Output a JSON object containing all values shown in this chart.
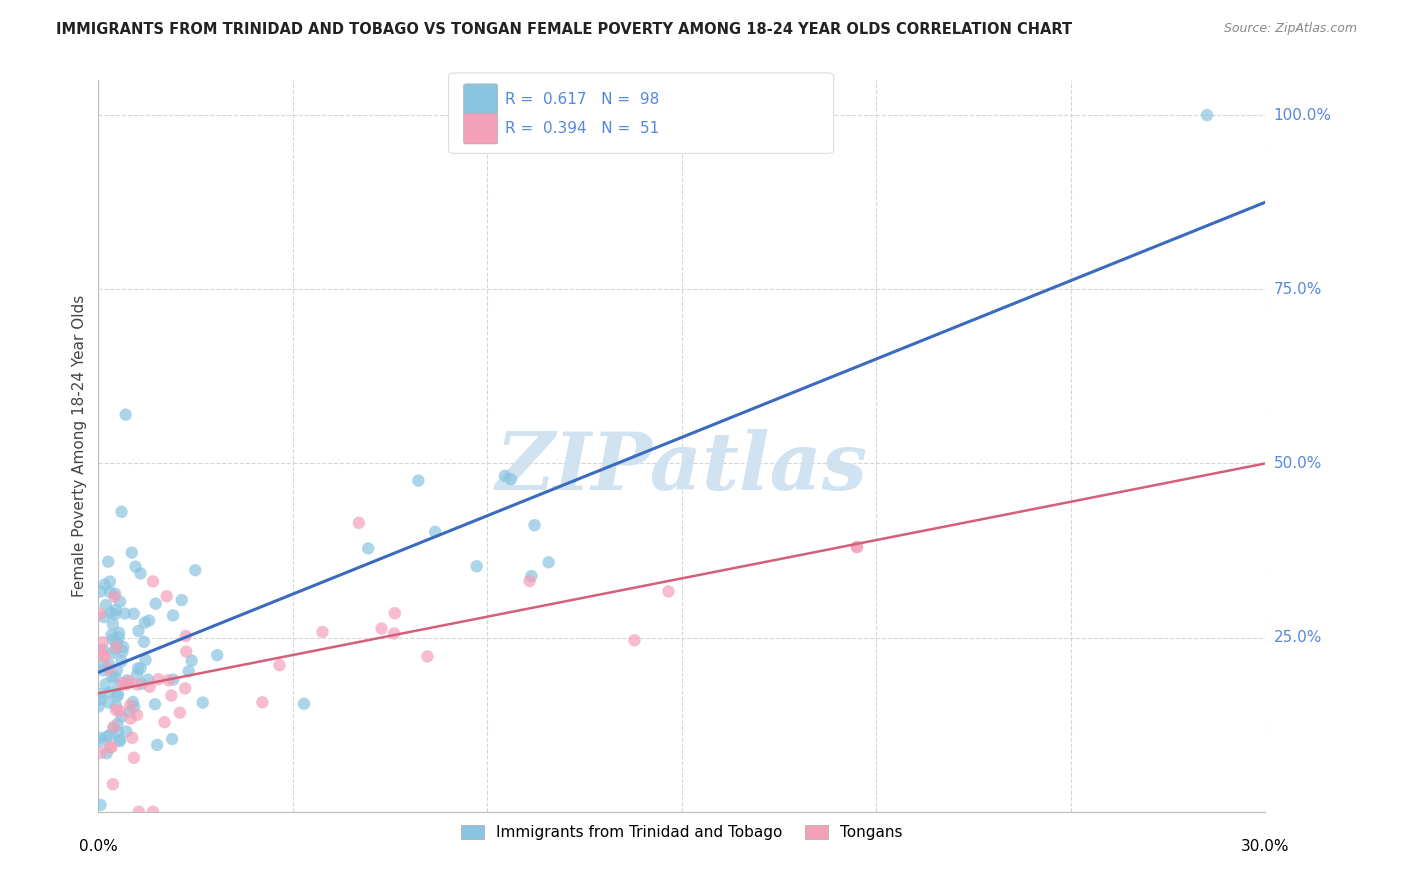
{
  "title": "IMMIGRANTS FROM TRINIDAD AND TOBAGO VS TONGAN FEMALE POVERTY AMONG 18-24 YEAR OLDS CORRELATION CHART",
  "source": "Source: ZipAtlas.com",
  "ylabel": "Female Poverty Among 18-24 Year Olds",
  "xlim": [
    0.0,
    0.3
  ],
  "ylim": [
    0.0,
    1.05
  ],
  "ytick_values": [
    0.0,
    0.25,
    0.5,
    0.75,
    1.0
  ],
  "ytick_labels": [
    "",
    "25.0%",
    "50.0%",
    "75.0%",
    "100.0%"
  ],
  "xtick_values": [
    0.0,
    0.05,
    0.1,
    0.15,
    0.2,
    0.25,
    0.3
  ],
  "legend_label1": "Immigrants from Trinidad and Tobago",
  "legend_label2": "Tongans",
  "R1": "0.617",
  "N1": "98",
  "R2": "0.394",
  "N2": "51",
  "color1": "#89c4e1",
  "color2": "#f4a0b8",
  "line_color1": "#3a6bbf",
  "line_color2": "#d45f7a",
  "line1_x0": 0.0,
  "line1_y0": 0.2,
  "line1_x1": 0.3,
  "line1_y1": 0.875,
  "line2_x0": 0.0,
  "line2_y0": 0.17,
  "line2_x1": 0.3,
  "line2_y1": 0.5,
  "watermark_text": "ZIPatlas",
  "watermark_color": "#ccdff0",
  "background_color": "#ffffff",
  "grid_color": "#cccccc",
  "label_color": "#5588dd",
  "title_color": "#222222",
  "source_color": "#888888"
}
